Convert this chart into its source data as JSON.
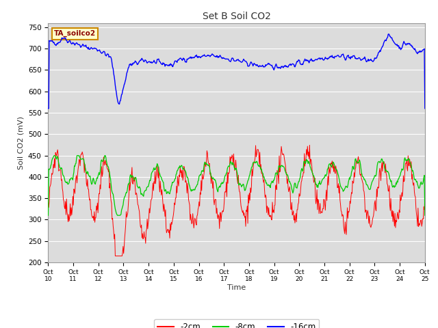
{
  "title": "Set B Soil CO2",
  "ylabel": "Soil CO2 (mV)",
  "xlabel": "Time",
  "label_text": "TA_soilco2",
  "ylim": [
    200,
    760
  ],
  "bg_color": "#dcdcdc",
  "fig_color": "#ffffff",
  "legend_entries": [
    "-2cm",
    "-8cm",
    "-16cm"
  ],
  "legend_colors": [
    "#ff0000",
    "#00cc00",
    "#0000ff"
  ],
  "xtick_labels": [
    "Oct\n10",
    "Oct\n11",
    "Oct\n12",
    "Oct\n13",
    "Oct\n14",
    "Oct\n15",
    "Oct\n16",
    "Oct\n17",
    "Oct\n18",
    "Oct\n19",
    "Oct\n20",
    "Oct\n21",
    "Oct\n22",
    "Oct\n23",
    "Oct\n24",
    "Oct\n25"
  ],
  "ytick_values": [
    200,
    250,
    300,
    350,
    400,
    450,
    500,
    550,
    600,
    650,
    700,
    750
  ],
  "n_points_per_day": 48,
  "seed": 42
}
